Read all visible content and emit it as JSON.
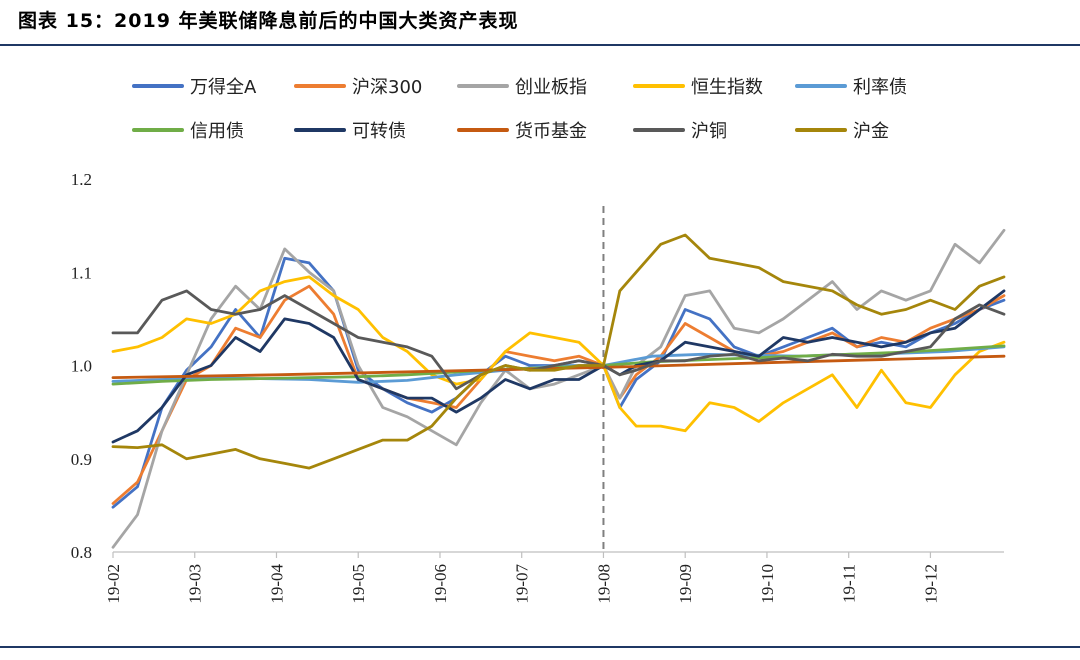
{
  "figure": {
    "title": "图表 15：2019 年美联储降息前后的中国大类资产表现"
  },
  "chart_data": {
    "type": "line",
    "title": "2019 年美联储降息前后的中国大类资产表现",
    "xlabel": "",
    "ylabel": "",
    "ylim": [
      0.8,
      1.2
    ],
    "yticks": [
      "0.8",
      "0.9",
      "1.0",
      "1.1",
      "1.2"
    ],
    "xlim": [
      0,
      10.9
    ],
    "xticks": [
      "19-02",
      "19-03",
      "19-04",
      "19-05",
      "19-06",
      "19-07",
      "19-08",
      "19-09",
      "19-10",
      "19-11",
      "19-12"
    ],
    "event_marker": {
      "x": 6.0,
      "style": "dashed"
    },
    "legend_position": "top",
    "series": [
      {
        "name": "万得全A",
        "color": "#4472c4",
        "x": [
          0,
          0.3,
          0.6,
          0.9,
          1.2,
          1.5,
          1.8,
          2.1,
          2.4,
          2.7,
          3.0,
          3.3,
          3.6,
          3.9,
          4.2,
          4.5,
          4.8,
          5.1,
          5.4,
          5.7,
          6.0,
          6.2,
          6.4,
          6.7,
          7.0,
          7.3,
          7.6,
          7.9,
          8.2,
          8.5,
          8.8,
          9.1,
          9.4,
          9.7,
          10.0,
          10.3,
          10.6,
          10.9
        ],
        "y": [
          0.848,
          0.87,
          0.955,
          0.995,
          1.02,
          1.06,
          1.03,
          1.115,
          1.11,
          1.08,
          0.995,
          0.975,
          0.96,
          0.95,
          0.965,
          0.99,
          1.01,
          1.0,
          1.0,
          1.005,
          1.0,
          0.955,
          0.985,
          1.005,
          1.06,
          1.05,
          1.02,
          1.01,
          1.02,
          1.03,
          1.04,
          1.02,
          1.025,
          1.02,
          1.035,
          1.045,
          1.06,
          1.07
        ]
      },
      {
        "name": "沪深300",
        "color": "#ed7d31",
        "x": [
          0,
          0.3,
          0.6,
          0.9,
          1.2,
          1.5,
          1.8,
          2.1,
          2.4,
          2.7,
          3.0,
          3.3,
          3.6,
          3.9,
          4.2,
          4.5,
          4.8,
          5.1,
          5.4,
          5.7,
          6.0,
          6.2,
          6.4,
          6.7,
          7.0,
          7.3,
          7.6,
          7.9,
          8.2,
          8.5,
          8.8,
          9.1,
          9.4,
          9.7,
          10.0,
          10.3,
          10.6,
          10.9
        ],
        "y": [
          0.852,
          0.875,
          0.93,
          0.985,
          1.0,
          1.04,
          1.03,
          1.07,
          1.085,
          1.055,
          0.985,
          0.975,
          0.965,
          0.96,
          0.955,
          0.985,
          1.015,
          1.01,
          1.005,
          1.01,
          1.0,
          0.965,
          0.99,
          1.01,
          1.045,
          1.03,
          1.015,
          1.01,
          1.015,
          1.025,
          1.035,
          1.02,
          1.03,
          1.025,
          1.04,
          1.05,
          1.06,
          1.075
        ]
      },
      {
        "name": "创业板指",
        "color": "#a5a5a5",
        "x": [
          0,
          0.3,
          0.6,
          0.9,
          1.2,
          1.5,
          1.8,
          2.1,
          2.4,
          2.7,
          3.0,
          3.3,
          3.6,
          3.9,
          4.2,
          4.5,
          4.8,
          5.1,
          5.4,
          5.7,
          6.0,
          6.2,
          6.4,
          6.7,
          7.0,
          7.3,
          7.6,
          7.9,
          8.2,
          8.5,
          8.8,
          9.1,
          9.4,
          9.7,
          10.0,
          10.3,
          10.6,
          10.9
        ],
        "y": [
          0.805,
          0.84,
          0.93,
          0.99,
          1.05,
          1.085,
          1.06,
          1.125,
          1.1,
          1.08,
          1.0,
          0.955,
          0.945,
          0.93,
          0.915,
          0.96,
          0.995,
          0.975,
          0.98,
          0.99,
          1.0,
          0.965,
          1.0,
          1.02,
          1.075,
          1.08,
          1.04,
          1.035,
          1.05,
          1.07,
          1.09,
          1.06,
          1.08,
          1.07,
          1.08,
          1.13,
          1.11,
          1.145
        ]
      },
      {
        "name": "恒生指数",
        "color": "#ffc000",
        "x": [
          0,
          0.3,
          0.6,
          0.9,
          1.2,
          1.5,
          1.8,
          2.1,
          2.4,
          2.7,
          3.0,
          3.3,
          3.6,
          3.9,
          4.2,
          4.5,
          4.8,
          5.1,
          5.4,
          5.7,
          6.0,
          6.2,
          6.4,
          6.7,
          7.0,
          7.3,
          7.6,
          7.9,
          8.2,
          8.5,
          8.8,
          9.1,
          9.4,
          9.7,
          10.0,
          10.3,
          10.6,
          10.9
        ],
        "y": [
          1.015,
          1.02,
          1.03,
          1.05,
          1.045,
          1.055,
          1.08,
          1.09,
          1.095,
          1.075,
          1.06,
          1.03,
          1.015,
          0.99,
          0.98,
          0.985,
          1.015,
          1.035,
          1.03,
          1.025,
          1.0,
          0.955,
          0.935,
          0.935,
          0.93,
          0.96,
          0.955,
          0.94,
          0.96,
          0.975,
          0.99,
          0.955,
          0.995,
          0.96,
          0.955,
          0.99,
          1.015,
          1.025
        ]
      },
      {
        "name": "利率债",
        "color": "#5b9bd5",
        "x": [
          0,
          0.6,
          1.2,
          1.8,
          2.4,
          3.0,
          3.6,
          4.2,
          4.8,
          5.4,
          6.0,
          6.6,
          7.2,
          7.8,
          8.4,
          9.0,
          9.6,
          10.2,
          10.9
        ],
        "y": [
          0.983,
          0.985,
          0.987,
          0.986,
          0.985,
          0.982,
          0.984,
          0.99,
          0.995,
          1.0,
          1.0,
          1.01,
          1.012,
          1.011,
          1.01,
          1.012,
          1.013,
          1.015,
          1.02
        ]
      },
      {
        "name": "信用债",
        "color": "#70ad47",
        "x": [
          0,
          0.6,
          1.2,
          1.8,
          2.4,
          3.0,
          3.6,
          4.2,
          4.8,
          5.4,
          6.0,
          6.6,
          7.2,
          7.8,
          8.4,
          9.0,
          9.6,
          10.2,
          10.9
        ],
        "y": [
          0.98,
          0.983,
          0.985,
          0.986,
          0.987,
          0.988,
          0.99,
          0.993,
          0.996,
          0.998,
          1.0,
          1.004,
          1.006,
          1.008,
          1.01,
          1.012,
          1.014,
          1.017,
          1.021
        ]
      },
      {
        "name": "可转债",
        "color": "#1f3864",
        "x": [
          0,
          0.3,
          0.6,
          0.9,
          1.2,
          1.5,
          1.8,
          2.1,
          2.4,
          2.7,
          3.0,
          3.3,
          3.6,
          3.9,
          4.2,
          4.5,
          4.8,
          5.1,
          5.4,
          5.7,
          6.0,
          6.2,
          6.4,
          6.7,
          7.0,
          7.3,
          7.6,
          7.9,
          8.2,
          8.5,
          8.8,
          9.1,
          9.4,
          9.7,
          10.0,
          10.3,
          10.6,
          10.9
        ],
        "y": [
          0.918,
          0.93,
          0.955,
          0.99,
          1.0,
          1.03,
          1.015,
          1.05,
          1.045,
          1.03,
          0.985,
          0.975,
          0.965,
          0.965,
          0.95,
          0.965,
          0.985,
          0.975,
          0.985,
          0.985,
          1.0,
          0.99,
          1.0,
          1.005,
          1.025,
          1.02,
          1.015,
          1.01,
          1.03,
          1.025,
          1.03,
          1.025,
          1.02,
          1.025,
          1.035,
          1.04,
          1.06,
          1.08
        ]
      },
      {
        "name": "货币基金",
        "color": "#c55a11",
        "x": [
          0,
          2.0,
          4.0,
          6.0,
          8.0,
          10.9
        ],
        "y": [
          0.987,
          0.99,
          0.994,
          0.998,
          1.003,
          1.01
        ]
      },
      {
        "name": "沪铜",
        "color": "#595959",
        "x": [
          0,
          0.3,
          0.6,
          0.9,
          1.2,
          1.5,
          1.8,
          2.1,
          2.4,
          2.7,
          3.0,
          3.3,
          3.6,
          3.9,
          4.2,
          4.5,
          4.8,
          5.1,
          5.4,
          5.7,
          6.0,
          6.2,
          6.4,
          6.7,
          7.0,
          7.3,
          7.6,
          7.9,
          8.2,
          8.5,
          8.8,
          9.1,
          9.4,
          9.7,
          10.0,
          10.3,
          10.6,
          10.9
        ],
        "y": [
          1.035,
          1.035,
          1.07,
          1.08,
          1.06,
          1.055,
          1.06,
          1.075,
          1.06,
          1.045,
          1.03,
          1.025,
          1.02,
          1.01,
          0.975,
          0.99,
          1.0,
          0.995,
          1.0,
          1.005,
          1.0,
          0.99,
          0.995,
          1.005,
          1.005,
          1.01,
          1.012,
          1.005,
          1.008,
          1.005,
          1.012,
          1.01,
          1.01,
          1.015,
          1.02,
          1.05,
          1.065,
          1.055
        ]
      },
      {
        "name": "沪金",
        "color": "#a5860b",
        "x": [
          0,
          0.3,
          0.6,
          0.9,
          1.2,
          1.5,
          1.8,
          2.1,
          2.4,
          2.7,
          3.0,
          3.3,
          3.6,
          3.9,
          4.2,
          4.5,
          4.8,
          5.1,
          5.4,
          5.7,
          6.0,
          6.2,
          6.4,
          6.7,
          7.0,
          7.3,
          7.6,
          7.9,
          8.2,
          8.5,
          8.8,
          9.1,
          9.4,
          9.7,
          10.0,
          10.3,
          10.6,
          10.9
        ],
        "y": [
          0.913,
          0.912,
          0.915,
          0.9,
          0.905,
          0.91,
          0.9,
          0.895,
          0.89,
          0.9,
          0.91,
          0.92,
          0.92,
          0.935,
          0.965,
          0.99,
          1.0,
          0.995,
          0.995,
          1.0,
          1.0,
          1.08,
          1.1,
          1.13,
          1.14,
          1.115,
          1.11,
          1.105,
          1.09,
          1.085,
          1.08,
          1.065,
          1.055,
          1.06,
          1.07,
          1.06,
          1.085,
          1.095
        ]
      }
    ]
  }
}
